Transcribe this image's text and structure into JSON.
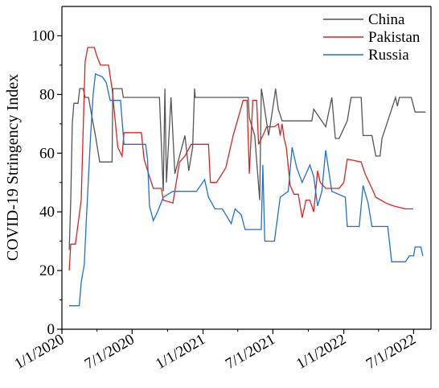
{
  "chart_data": {
    "type": "line",
    "title": "",
    "xlabel": "",
    "ylabel": "COVID-19 Stringency Index",
    "xlim": [
      "2020-01-01",
      "2022-08-15"
    ],
    "ylim": [
      0,
      110
    ],
    "yticks": [
      0,
      20,
      40,
      60,
      80,
      100
    ],
    "yminor": [
      10,
      30,
      50,
      70,
      90
    ],
    "xticks": [
      {
        "date": "2020-01-01",
        "label": "1/1/2020"
      },
      {
        "date": "2020-07-01",
        "label": "7/1/2020"
      },
      {
        "date": "2021-01-01",
        "label": "1/1/2021"
      },
      {
        "date": "2021-07-01",
        "label": "7/1/2021"
      },
      {
        "date": "2022-01-01",
        "label": "1/1/2022"
      },
      {
        "date": "2022-07-01",
        "label": "7/1/2022"
      }
    ],
    "xminor": [
      "2020-04-01",
      "2020-10-01",
      "2021-04-01",
      "2021-10-01",
      "2022-04-01"
    ],
    "grid": false,
    "legend_position": "top-right",
    "series": [
      {
        "name": "China",
        "color": "#555555",
        "points": [
          [
            "2020-01-20",
            27
          ],
          [
            "2020-01-24",
            44
          ],
          [
            "2020-01-28",
            70
          ],
          [
            "2020-02-01",
            77
          ],
          [
            "2020-02-12",
            77
          ],
          [
            "2020-02-16",
            82
          ],
          [
            "2020-02-25",
            82
          ],
          [
            "2020-03-01",
            79
          ],
          [
            "2020-03-10",
            79
          ],
          [
            "2020-03-18",
            73
          ],
          [
            "2020-03-28",
            66
          ],
          [
            "2020-04-08",
            57
          ],
          [
            "2020-05-10",
            57
          ],
          [
            "2020-05-12",
            82
          ],
          [
            "2020-06-05",
            82
          ],
          [
            "2020-06-08",
            79
          ],
          [
            "2020-09-10",
            79
          ],
          [
            "2020-09-20",
            47
          ],
          [
            "2020-09-24",
            82
          ],
          [
            "2020-09-28",
            50
          ],
          [
            "2020-10-10",
            79
          ],
          [
            "2020-10-20",
            53
          ],
          [
            "2020-11-15",
            66
          ],
          [
            "2020-11-25",
            54
          ],
          [
            "2020-12-05",
            62
          ],
          [
            "2020-12-10",
            82
          ],
          [
            "2020-12-12",
            79
          ],
          [
            "2021-04-28",
            79
          ],
          [
            "2021-05-01",
            72
          ],
          [
            "2021-05-15",
            66
          ],
          [
            "2021-05-28",
            44
          ],
          [
            "2021-06-01",
            82
          ],
          [
            "2021-06-05",
            79
          ],
          [
            "2021-06-20",
            66
          ],
          [
            "2021-07-05",
            79
          ],
          [
            "2021-07-08",
            82
          ],
          [
            "2021-07-15",
            75
          ],
          [
            "2021-07-25",
            71
          ],
          [
            "2021-08-10",
            71
          ],
          [
            "2021-08-20",
            71
          ],
          [
            "2021-09-01",
            71
          ],
          [
            "2021-10-10",
            71
          ],
          [
            "2021-10-15",
            75
          ],
          [
            "2021-11-15",
            69
          ],
          [
            "2021-12-01",
            79
          ],
          [
            "2021-12-10",
            65
          ],
          [
            "2021-12-20",
            65
          ],
          [
            "2022-01-10",
            71
          ],
          [
            "2022-01-20",
            79
          ],
          [
            "2022-02-15",
            79
          ],
          [
            "2022-02-20",
            66
          ],
          [
            "2022-03-15",
            66
          ],
          [
            "2022-03-25",
            59
          ],
          [
            "2022-04-05",
            59
          ],
          [
            "2022-04-10",
            65
          ],
          [
            "2022-04-25",
            71
          ],
          [
            "2022-05-15",
            79
          ],
          [
            "2022-05-20",
            76
          ],
          [
            "2022-05-25",
            79
          ],
          [
            "2022-06-20",
            79
          ],
          [
            "2022-06-25",
            79
          ],
          [
            "2022-07-05",
            74
          ],
          [
            "2022-08-01",
            74
          ]
        ]
      },
      {
        "name": "Pakistan",
        "color": "#e02020",
        "points": [
          [
            "2020-01-20",
            20
          ],
          [
            "2020-01-24",
            29
          ],
          [
            "2020-02-05",
            29
          ],
          [
            "2020-02-20",
            44
          ],
          [
            "2020-03-01",
            91
          ],
          [
            "2020-03-08",
            96
          ],
          [
            "2020-03-25",
            96
          ],
          [
            "2020-04-01",
            93
          ],
          [
            "2020-04-10",
            90
          ],
          [
            "2020-05-01",
            90
          ],
          [
            "2020-05-10",
            82
          ],
          [
            "2020-05-25",
            62
          ],
          [
            "2020-06-05",
            59
          ],
          [
            "2020-06-10",
            67
          ],
          [
            "2020-07-25",
            67
          ],
          [
            "2020-08-01",
            58
          ],
          [
            "2020-08-15",
            52
          ],
          [
            "2020-08-25",
            48
          ],
          [
            "2020-09-15",
            48
          ],
          [
            "2020-09-20",
            44
          ],
          [
            "2020-10-15",
            43
          ],
          [
            "2020-11-01",
            57
          ],
          [
            "2020-11-15",
            59
          ],
          [
            "2020-12-01",
            63
          ],
          [
            "2021-01-15",
            63
          ],
          [
            "2021-01-20",
            50
          ],
          [
            "2021-02-05",
            50
          ],
          [
            "2021-03-01",
            55
          ],
          [
            "2021-03-20",
            66
          ],
          [
            "2021-04-15",
            78
          ],
          [
            "2021-04-25",
            78
          ],
          [
            "2021-05-01",
            53
          ],
          [
            "2021-05-10",
            78
          ],
          [
            "2021-05-20",
            78
          ],
          [
            "2021-05-25",
            63
          ],
          [
            "2021-06-05",
            66
          ],
          [
            "2021-06-15",
            69
          ],
          [
            "2021-06-25",
            69
          ],
          [
            "2021-07-05",
            69
          ],
          [
            "2021-07-15",
            70
          ],
          [
            "2021-07-20",
            66
          ],
          [
            "2021-07-25",
            70
          ],
          [
            "2021-07-30",
            65
          ],
          [
            "2021-08-05",
            62
          ],
          [
            "2021-08-15",
            49
          ],
          [
            "2021-08-25",
            46
          ],
          [
            "2021-09-05",
            46
          ],
          [
            "2021-09-15",
            38
          ],
          [
            "2021-09-25",
            44
          ],
          [
            "2021-10-05",
            44
          ],
          [
            "2021-10-15",
            40
          ],
          [
            "2021-10-25",
            54
          ],
          [
            "2021-11-01",
            50
          ],
          [
            "2021-11-15",
            48
          ],
          [
            "2021-12-20",
            48
          ],
          [
            "2022-01-01",
            50
          ],
          [
            "2022-01-10",
            58
          ],
          [
            "2022-02-15",
            57
          ],
          [
            "2022-02-25",
            53
          ],
          [
            "2022-03-15",
            48
          ],
          [
            "2022-03-25",
            45
          ],
          [
            "2022-04-20",
            43
          ],
          [
            "2022-05-10",
            42
          ],
          [
            "2022-06-10",
            41
          ],
          [
            "2022-06-30",
            41
          ]
        ]
      },
      {
        "name": "Russia",
        "color": "#1e6fd8",
        "points": [
          [
            "2020-01-20",
            8
          ],
          [
            "2020-02-15",
            8
          ],
          [
            "2020-02-20",
            16
          ],
          [
            "2020-02-28",
            22
          ],
          [
            "2020-03-05",
            39
          ],
          [
            "2020-03-15",
            65
          ],
          [
            "2020-03-22",
            80
          ],
          [
            "2020-03-28",
            87
          ],
          [
            "2020-04-15",
            86
          ],
          [
            "2020-04-25",
            84
          ],
          [
            "2020-05-05",
            78
          ],
          [
            "2020-06-01",
            78
          ],
          [
            "2020-06-10",
            63
          ],
          [
            "2020-07-10",
            63
          ],
          [
            "2020-07-15",
            63
          ],
          [
            "2020-08-05",
            63
          ],
          [
            "2020-08-10",
            58
          ],
          [
            "2020-08-15",
            42
          ],
          [
            "2020-08-25",
            37
          ],
          [
            "2020-09-05",
            40
          ],
          [
            "2020-09-20",
            45
          ],
          [
            "2020-10-15",
            47
          ],
          [
            "2020-11-15",
            47
          ],
          [
            "2020-12-15",
            47
          ],
          [
            "2021-01-05",
            51
          ],
          [
            "2021-01-15",
            45
          ],
          [
            "2021-02-01",
            41
          ],
          [
            "2021-02-20",
            41
          ],
          [
            "2021-03-15",
            36
          ],
          [
            "2021-03-25",
            41
          ],
          [
            "2021-04-10",
            39
          ],
          [
            "2021-04-20",
            34
          ],
          [
            "2021-05-10",
            34
          ],
          [
            "2021-06-01",
            34
          ],
          [
            "2021-06-05",
            56
          ],
          [
            "2021-06-10",
            30
          ],
          [
            "2021-07-05",
            30
          ],
          [
            "2021-07-20",
            45
          ],
          [
            "2021-08-10",
            47
          ],
          [
            "2021-08-20",
            62
          ],
          [
            "2021-09-01",
            55
          ],
          [
            "2021-09-15",
            50
          ],
          [
            "2021-10-05",
            56
          ],
          [
            "2021-10-15",
            52
          ],
          [
            "2021-10-25",
            42
          ],
          [
            "2021-11-05",
            47
          ],
          [
            "2021-11-15",
            61
          ],
          [
            "2021-12-01",
            47
          ],
          [
            "2022-01-05",
            45
          ],
          [
            "2022-01-10",
            35
          ],
          [
            "2022-02-10",
            35
          ],
          [
            "2022-02-20",
            49
          ],
          [
            "2022-03-05",
            43
          ],
          [
            "2022-03-15",
            35
          ],
          [
            "2022-04-10",
            35
          ],
          [
            "2022-04-25",
            35
          ],
          [
            "2022-05-05",
            23
          ],
          [
            "2022-06-10",
            23
          ],
          [
            "2022-06-20",
            25
          ],
          [
            "2022-07-01",
            25
          ],
          [
            "2022-07-05",
            28
          ],
          [
            "2022-07-20",
            28
          ],
          [
            "2022-07-25",
            25
          ]
        ]
      }
    ]
  }
}
